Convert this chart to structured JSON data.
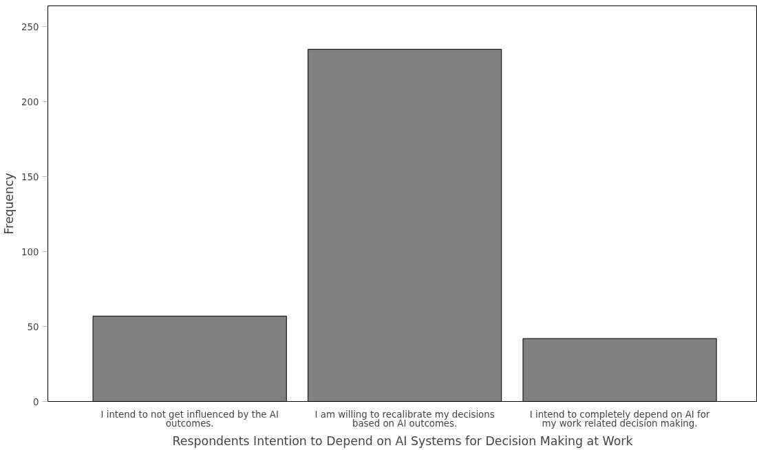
{
  "chart_data": {
    "type": "bar",
    "xlabel": "Respondents Intention to Depend on AI Systems for Decision Making at Work",
    "ylabel": "Frequency",
    "categories": [
      "I intend to not get influenced by the AI\noutcomes.",
      "I am willing to recalibrate my decisions\nbased on AI outcomes.",
      "I intend to completely depend on AI for\nmy work related decision making."
    ],
    "values": [
      57,
      235,
      42
    ],
    "color": "#808080",
    "ylim": [
      0,
      264
    ],
    "yticks": [
      0,
      50,
      100,
      150,
      200,
      250
    ],
    "grid": false
  }
}
